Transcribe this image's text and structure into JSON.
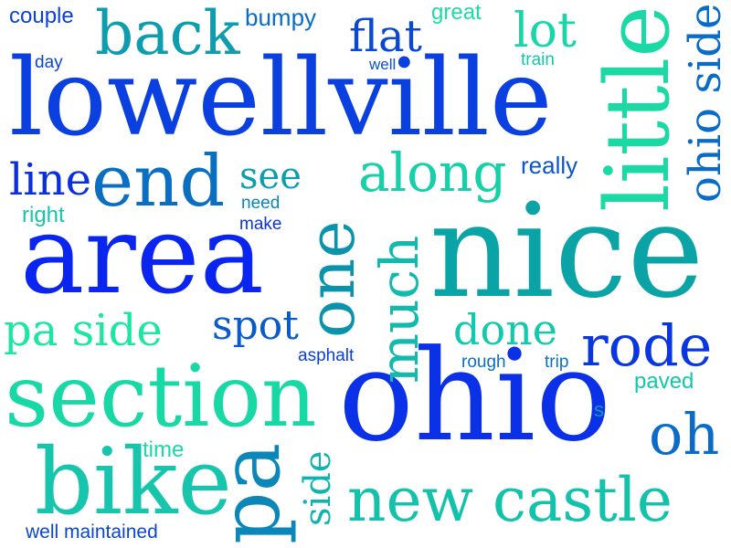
{
  "words": [
    {
      "id": "lowellville",
      "text": "lowellville",
      "color": "#0a3fe0"
    },
    {
      "id": "nice",
      "text": "nice",
      "color": "#0aa3a6"
    },
    {
      "id": "ohio",
      "text": "ohio",
      "color": "#0a30e8"
    },
    {
      "id": "area",
      "text": "area",
      "color": "#0a25f0"
    },
    {
      "id": "section",
      "text": "section",
      "color": "#18d8a6"
    },
    {
      "id": "little",
      "text": "little",
      "color": "#1ad9a4"
    },
    {
      "id": "bike",
      "text": "bike",
      "color": "#17c4ac"
    },
    {
      "id": "end",
      "text": "end",
      "color": "#0a6fc0"
    },
    {
      "id": "one",
      "text": "one",
      "color": "#0a93ad"
    },
    {
      "id": "pa",
      "text": "pa",
      "color": "#0a86b9"
    },
    {
      "id": "new-castle",
      "text": "new castle",
      "color": "#13c2ab"
    },
    {
      "id": "back",
      "text": "back",
      "color": "#0d9daf"
    },
    {
      "id": "along",
      "text": "along",
      "color": "#16d1a8"
    },
    {
      "id": "much",
      "text": "much",
      "color": "#12b9ad"
    },
    {
      "id": "rode",
      "text": "rode",
      "color": "#0a36e0"
    },
    {
      "id": "oh",
      "text": "oh",
      "color": "#0a6cc8"
    },
    {
      "id": "ohio-side",
      "text": "ohio side",
      "color": "#0a6cc6"
    },
    {
      "id": "pa-side",
      "text": "pa side",
      "color": "#1ce6a2"
    },
    {
      "id": "spot",
      "text": "spot",
      "color": "#0a5ac9"
    },
    {
      "id": "done",
      "text": "done",
      "color": "#12c9ab"
    },
    {
      "id": "lot",
      "text": "lot",
      "color": "#17d6a7"
    },
    {
      "id": "flat",
      "text": "flat",
      "color": "#0a49cf"
    },
    {
      "id": "line",
      "text": "line",
      "color": "#0a2fe0"
    },
    {
      "id": "see",
      "text": "see",
      "color": "#0d9eae"
    },
    {
      "id": "side",
      "text": "side",
      "color": "#10b4ae"
    },
    {
      "id": "couple",
      "text": "couple",
      "color": "#0a40dd"
    },
    {
      "id": "bumpy",
      "text": "bumpy",
      "color": "#0a6cc6"
    },
    {
      "id": "great",
      "text": "great",
      "color": "#1cdca6"
    },
    {
      "id": "train",
      "text": "train",
      "color": "#14c6ac"
    },
    {
      "id": "day",
      "text": "day",
      "color": "#0a46d2"
    },
    {
      "id": "well-top",
      "text": "well",
      "color": "#0a52cb"
    },
    {
      "id": "really",
      "text": "really",
      "color": "#0a56ca"
    },
    {
      "id": "need",
      "text": "need",
      "color": "#0a86b8"
    },
    {
      "id": "make",
      "text": "make",
      "color": "#0a34e0"
    },
    {
      "id": "right",
      "text": "right",
      "color": "#14c6ab"
    },
    {
      "id": "asphalt",
      "text": "asphalt",
      "color": "#0a3fdc"
    },
    {
      "id": "rough",
      "text": "rough",
      "color": "#0a6ec5"
    },
    {
      "id": "trip",
      "text": "trip",
      "color": "#0a6ec5"
    },
    {
      "id": "paved",
      "text": "paved",
      "color": "#12c8ab"
    },
    {
      "id": "s",
      "text": "s",
      "color": "#0d9fae"
    },
    {
      "id": "time",
      "text": "time",
      "color": "#1ad9a6"
    },
    {
      "id": "well-maintained",
      "text": "well maintained",
      "color": "#0a46d2"
    }
  ]
}
